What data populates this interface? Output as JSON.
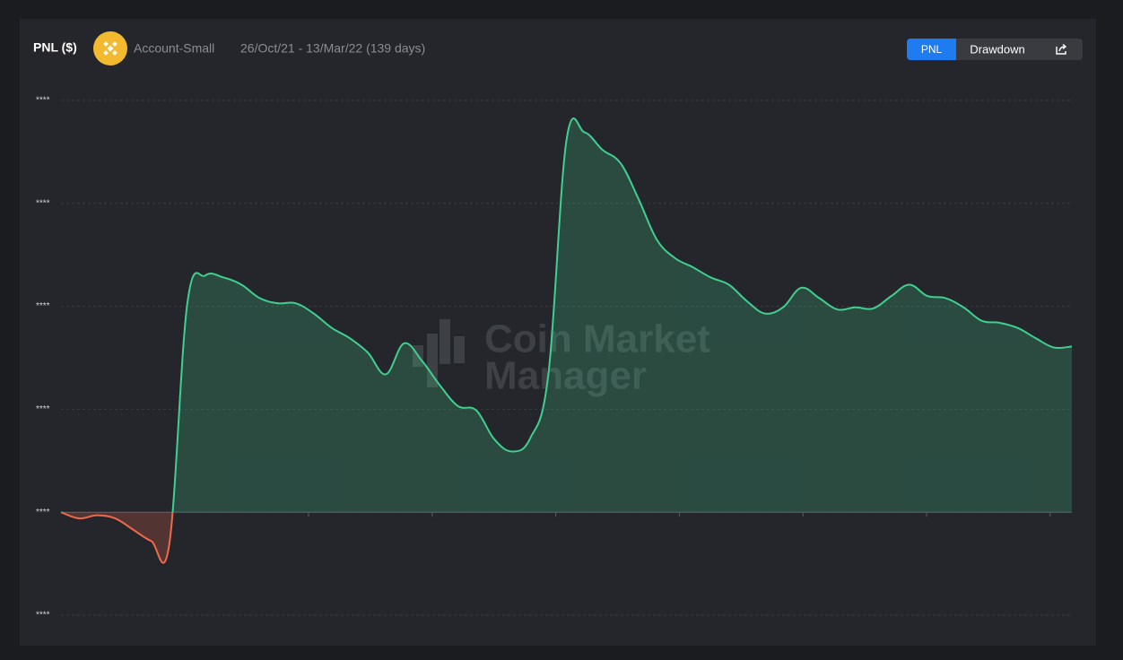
{
  "chart_data": {
    "type": "area",
    "title": "PNL ($)",
    "account": "Account-Small",
    "subtitle": "26/Oct/21 - 13/Mar/22 (139 days)",
    "buttons": [
      "PNL",
      "Drawdown"
    ],
    "watermark": [
      "Coin Market",
      "Manager"
    ],
    "values": [
      0,
      -0.06,
      -0.03,
      -0.06,
      -0.17,
      -0.28,
      -0.31,
      2.03,
      2.3,
      2.28,
      2.21,
      2.08,
      2.03,
      2.03,
      1.93,
      1.79,
      1.69,
      1.55,
      1.34,
      1.64,
      1.47,
      1.23,
      1.03,
      0.99,
      0.71,
      0.59,
      0.72,
      1.34,
      3.61,
      3.69,
      3.52,
      3.39,
      3.04,
      2.65,
      2.47,
      2.38,
      2.28,
      2.21,
      2.05,
      1.93,
      1.99,
      2.18,
      2.08,
      1.97,
      1.99,
      1.98,
      2.1,
      2.21,
      2.1,
      2.08,
      1.99,
      1.86,
      1.84,
      1.79,
      1.69,
      1.6,
      1.61
    ],
    "positive_color": "#3fcf8e",
    "negative_color": "#f0694a",
    "ylim": [
      -1,
      4
    ],
    "yticks": [
      {
        "value": -1,
        "label": "****"
      },
      {
        "value": 0,
        "label": "****"
      },
      {
        "value": 1,
        "label": "****"
      },
      {
        "value": 2,
        "label": "****"
      },
      {
        "value": 3,
        "label": "****"
      },
      {
        "value": 4,
        "label": "****"
      }
    ],
    "grid": true
  }
}
